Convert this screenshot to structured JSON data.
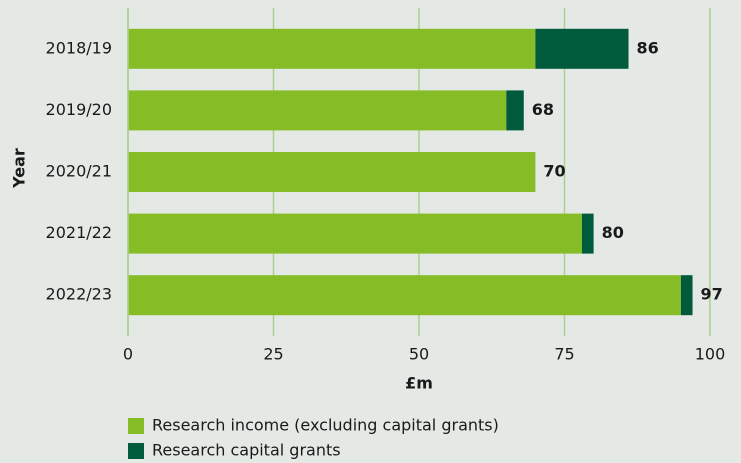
{
  "chart_data": {
    "type": "stacked_barh",
    "categories": [
      "2018/19",
      "2019/20",
      "2020/21",
      "2021/22",
      "2022/23"
    ],
    "series": [
      {
        "name": "Research income (excluding capital grants)",
        "color": "#86bc25",
        "values": [
          70,
          65,
          70,
          78,
          95
        ]
      },
      {
        "name": "Research capital grants",
        "color": "#005a3c",
        "values": [
          16,
          3,
          0,
          2,
          2
        ]
      }
    ],
    "totals": [
      86,
      68,
      70,
      80,
      97
    ],
    "xlabel": "£m",
    "ylabel": "Year",
    "xlim": [
      0,
      100
    ],
    "xticks": [
      0,
      25,
      50,
      75,
      100
    ],
    "grid": true,
    "grid_color": "#a9d18e"
  }
}
